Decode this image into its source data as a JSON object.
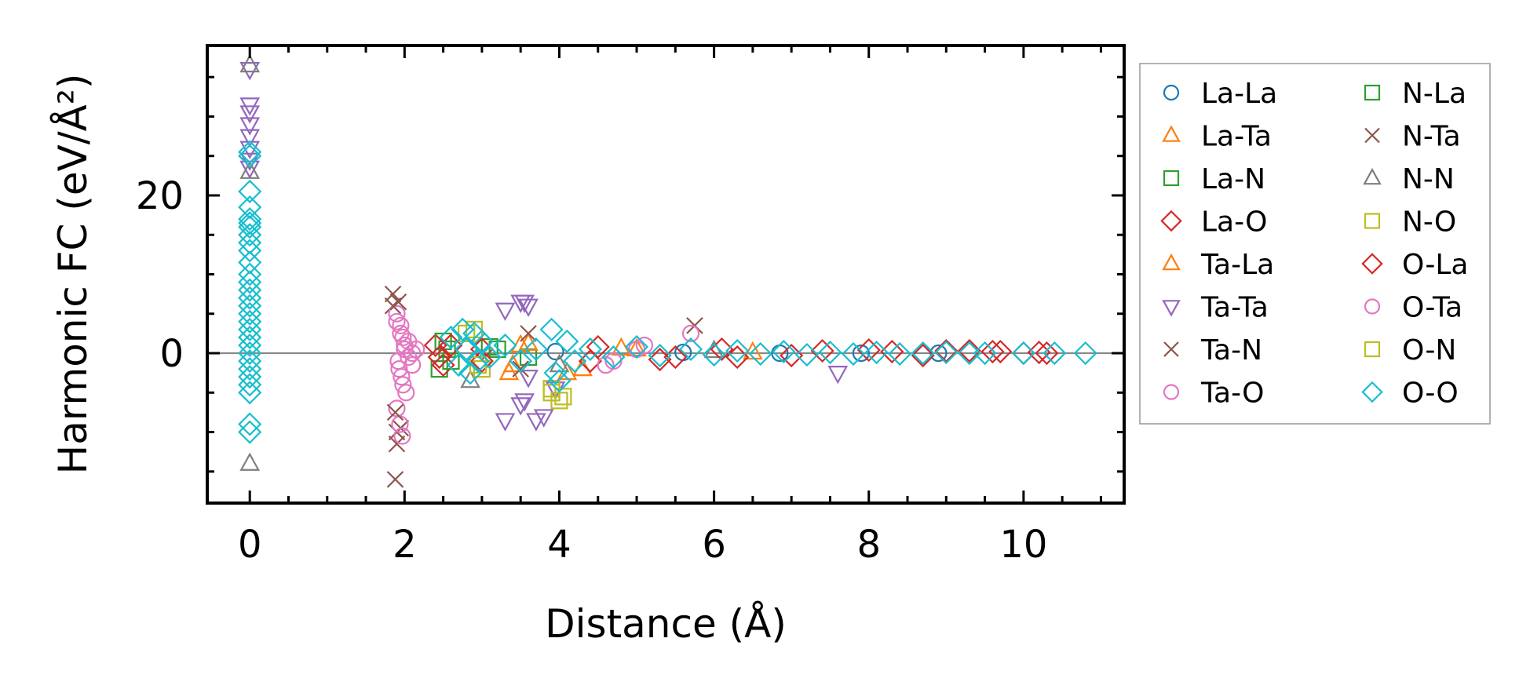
{
  "chart_data": {
    "type": "scatter",
    "xlabel": "Distance (Å)",
    "ylabel": "Harmonic FC (eV/Å²)",
    "xlim": [
      -0.55,
      11.3
    ],
    "ylim": [
      -19,
      39
    ],
    "xticks": [
      0,
      2,
      4,
      6,
      8,
      10
    ],
    "xtick_labels": [
      "0",
      "2",
      "4",
      "6",
      "8",
      "10"
    ],
    "yticks": [
      0,
      20
    ],
    "ytick_labels": [
      "0",
      "20"
    ],
    "zero_line": 0,
    "grid": false,
    "legend_position": "outside-right",
    "legend_columns": 2,
    "series": [
      {
        "name": "La-La",
        "marker": "circle",
        "color": "#1f77b4",
        "x": [
          3.95,
          5.6,
          6.85,
          7.9,
          8.9
        ],
        "y": [
          0.2,
          0.1,
          0.0,
          0.0,
          0.0
        ]
      },
      {
        "name": "La-Ta",
        "marker": "triangle-up",
        "color": "#ff7f0e",
        "x": [
          3.35,
          3.5,
          4.3,
          5.0,
          6.5
        ],
        "y": [
          -2.5,
          1.0,
          -2.0,
          0.5,
          0.1
        ]
      },
      {
        "name": "La-N",
        "marker": "square",
        "color": "#2ca02c",
        "x": [
          2.45,
          2.55,
          3.1,
          3.6
        ],
        "y": [
          -2.0,
          0.5,
          0.8,
          -0.5
        ]
      },
      {
        "name": "La-O",
        "marker": "diamond",
        "color": "#d62728",
        "x": [
          2.4,
          2.5,
          3.0,
          4.4,
          5.3,
          6.3,
          7.4,
          8.3,
          8.7,
          9.3,
          9.7,
          10.0,
          10.3
        ],
        "y": [
          1.0,
          -1.5,
          0.5,
          -1.0,
          -0.8,
          -0.5,
          0.3,
          0.2,
          -0.3,
          0.3,
          0.2,
          0.0,
          0.0
        ]
      },
      {
        "name": "Ta-La",
        "marker": "triangle-up",
        "color": "#ff7f0e",
        "x": [
          3.4,
          3.6,
          4.1,
          4.8
        ],
        "y": [
          -1.5,
          1.2,
          -2.5,
          0.6
        ]
      },
      {
        "name": "Ta-Ta",
        "marker": "triangle-down",
        "color": "#9467bd",
        "x": [
          0.0,
          0.0,
          0.0,
          0.0,
          0.0,
          0.0,
          0.0,
          0.0,
          3.3,
          3.5,
          3.55,
          3.6,
          3.3,
          3.5,
          3.55,
          3.7,
          3.8,
          3.95,
          3.6,
          7.6
        ],
        "y": [
          36.0,
          31.5,
          30.5,
          29.0,
          27.5,
          26.0,
          24.5,
          23.5,
          5.5,
          6.5,
          6.5,
          6.0,
          -8.5,
          -6.5,
          -6.0,
          -8.5,
          -8.0,
          -4.5,
          -3.0,
          -2.5
        ]
      },
      {
        "name": "Ta-N",
        "marker": "x",
        "color": "#8c564b",
        "x": [
          1.85,
          1.85,
          1.9,
          1.9,
          1.95,
          1.88,
          5.75,
          3.5
        ],
        "y": [
          7.5,
          6.0,
          -10.0,
          -11.5,
          -9.5,
          -16.0,
          3.5,
          -2.0
        ]
      },
      {
        "name": "Ta-O",
        "marker": "circle",
        "color": "#e377c2",
        "x": [
          1.9,
          1.95,
          1.98,
          2.0,
          1.92,
          1.96,
          2.02,
          1.9,
          1.94,
          1.97,
          2.05,
          2.1,
          2.15,
          4.6,
          5.1,
          5.7
        ],
        "y": [
          5.0,
          3.5,
          2.0,
          0.5,
          -1.0,
          -3.0,
          -5.0,
          -7.0,
          -9.0,
          -10.5,
          1.5,
          -1.5,
          0.5,
          -1.5,
          1.0,
          2.5
        ]
      },
      {
        "name": "N-La",
        "marker": "square",
        "color": "#2ca02c",
        "x": [
          2.5,
          2.6,
          3.2
        ],
        "y": [
          1.5,
          -1.0,
          0.5
        ]
      },
      {
        "name": "N-Ta",
        "marker": "x",
        "color": "#8c564b",
        "x": [
          1.88,
          1.92,
          3.6
        ],
        "y": [
          -7.5,
          6.5,
          2.5
        ]
      },
      {
        "name": "N-N",
        "marker": "triangle-up",
        "color": "#7f7f7f",
        "x": [
          0.0,
          0.0,
          0.0,
          2.85,
          4.0,
          6.0
        ],
        "y": [
          36.5,
          23.0,
          -14.0,
          -3.5,
          -1.5,
          0.3
        ]
      },
      {
        "name": "N-O",
        "marker": "square",
        "color": "#bcbd22",
        "x": [
          2.9,
          3.9,
          4.0,
          3.0
        ],
        "y": [
          3.0,
          -5.0,
          -6.0,
          -2.0
        ]
      },
      {
        "name": "O-La",
        "marker": "diamond",
        "color": "#d62728",
        "x": [
          2.45,
          2.6,
          3.0,
          4.5,
          5.5,
          6.1,
          7.0,
          8.0,
          9.0,
          9.6,
          10.2
        ],
        "y": [
          -0.5,
          1.0,
          -1.0,
          0.8,
          -0.5,
          0.5,
          -0.3,
          0.4,
          0.3,
          0.2,
          0.1
        ]
      },
      {
        "name": "O-Ta",
        "marker": "circle",
        "color": "#e377c2",
        "x": [
          1.9,
          1.95,
          2.0,
          2.05,
          1.93,
          1.98,
          2.1,
          4.7,
          5.0
        ],
        "y": [
          4.0,
          2.5,
          1.0,
          -0.5,
          -2.0,
          -4.0,
          0.0,
          -1.0,
          0.5
        ]
      },
      {
        "name": "O-N",
        "marker": "square",
        "color": "#bcbd22",
        "x": [
          2.8,
          2.95,
          3.9,
          4.05
        ],
        "y": [
          2.5,
          -1.5,
          -4.5,
          -5.5
        ]
      },
      {
        "name": "O-O",
        "marker": "diamond",
        "color": "#17becf",
        "x": [
          0.0,
          0.0,
          0.0,
          0.0,
          0.0,
          0.0,
          0.0,
          0.0,
          0.0,
          0.0,
          0.0,
          0.0,
          0.0,
          0.0,
          0.0,
          0.0,
          0.0,
          0.0,
          0.0,
          0.0,
          0.0,
          0.0,
          0.0,
          0.0,
          0.0,
          0.0,
          0.0,
          0.0,
          0.0,
          2.6,
          2.7,
          2.75,
          2.8,
          2.85,
          2.9,
          2.95,
          3.0,
          3.1,
          3.3,
          3.5,
          3.7,
          3.9,
          3.95,
          4.0,
          4.1,
          4.2,
          4.4,
          4.7,
          5.0,
          5.3,
          5.7,
          6.0,
          6.3,
          6.6,
          6.9,
          7.2,
          7.5,
          7.8,
          8.1,
          8.4,
          8.7,
          9.0,
          9.3,
          9.5,
          10.0,
          10.4,
          10.8
        ],
        "y": [
          25.5,
          25.0,
          20.5,
          18.5,
          17.0,
          16.5,
          16.0,
          15.0,
          14.0,
          13.0,
          11.5,
          10.0,
          9.0,
          8.0,
          7.0,
          6.0,
          5.0,
          4.0,
          3.0,
          2.0,
          1.0,
          0.0,
          -1.0,
          -2.0,
          -3.0,
          -4.0,
          -5.0,
          -9.0,
          -10.0,
          2.0,
          -1.5,
          3.0,
          0.5,
          -2.5,
          2.5,
          -1.0,
          1.5,
          -0.5,
          1.0,
          -1.0,
          0.5,
          3.0,
          -2.5,
          -3.5,
          1.5,
          -1.0,
          0.5,
          -0.5,
          0.8,
          -0.3,
          0.5,
          -0.2,
          0.3,
          -0.1,
          0.2,
          -0.2,
          0.1,
          -0.1,
          0.1,
          -0.1,
          0.0,
          0.1,
          0.0,
          0.0,
          0.0,
          0.0,
          0.0
        ]
      }
    ]
  }
}
